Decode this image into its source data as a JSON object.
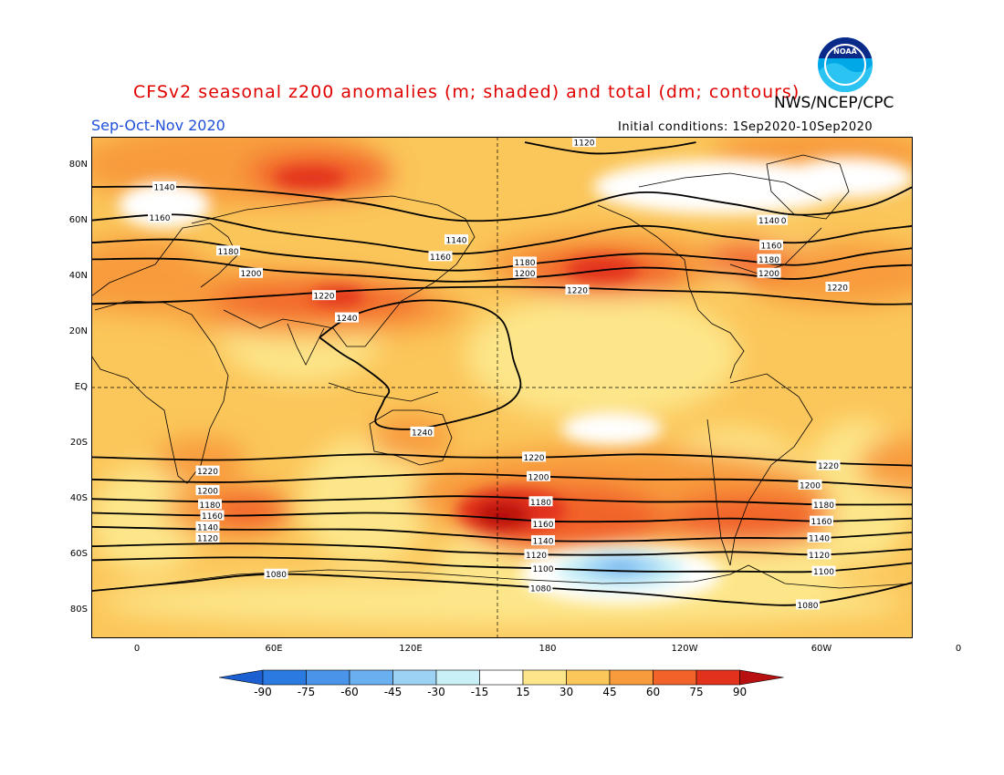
{
  "header": {
    "title": "CFSv2 seasonal z200 anomalies (m; shaded) and total (dm; contours)",
    "agency": "NWS/NCEP/CPC",
    "season": "Sep-Oct-Nov 2020",
    "initial_conditions": "Initial conditions: 1Sep2020-10Sep2020",
    "logo_text": "NOAA"
  },
  "axes": {
    "lat_labels": [
      "80N",
      "60N",
      "40N",
      "20N",
      "EQ",
      "20S",
      "40S",
      "60S",
      "80S"
    ],
    "lat_values": [
      80,
      60,
      40,
      20,
      0,
      -20,
      -40,
      -60,
      -80
    ],
    "lon_labels": [
      "0",
      "60E",
      "120E",
      "180",
      "120W",
      "60W",
      "0"
    ],
    "lon_values": [
      0,
      60,
      120,
      180,
      240,
      300,
      360
    ]
  },
  "colorbar": {
    "labels": [
      "-90",
      "-75",
      "-60",
      "-45",
      "-30",
      "-15",
      "15",
      "30",
      "45",
      "60",
      "75",
      "90"
    ],
    "colors": [
      "#1c5fd0",
      "#2a7ae2",
      "#4a95ea",
      "#6ab0f0",
      "#9cd3f4",
      "#c8f0f6",
      "#ffffff",
      "#fde68a",
      "#fbc65a",
      "#f89b3c",
      "#f2632a",
      "#e2321c",
      "#b81010"
    ]
  },
  "contour_labels": [
    {
      "text": "1120",
      "lon": 196,
      "lat": 88
    },
    {
      "text": "1140",
      "lon": 12,
      "lat": 72
    },
    {
      "text": "1160",
      "lon": 10,
      "lat": 61
    },
    {
      "text": "1180",
      "lon": 40,
      "lat": 49
    },
    {
      "text": "1200",
      "lon": 50,
      "lat": 41
    },
    {
      "text": "1220",
      "lon": 82,
      "lat": 33
    },
    {
      "text": "1240",
      "lon": 92,
      "lat": 25
    },
    {
      "text": "1140",
      "lon": 140,
      "lat": 53
    },
    {
      "text": "1160",
      "lon": 133,
      "lat": 47
    },
    {
      "text": "1180",
      "lon": 170,
      "lat": 45
    },
    {
      "text": "1200",
      "lon": 170,
      "lat": 41
    },
    {
      "text": "1220",
      "lon": 193,
      "lat": 35
    },
    {
      "text": "1140",
      "lon": 280,
      "lat": 60
    },
    {
      "text": "1160",
      "lon": 278,
      "lat": 51
    },
    {
      "text": "1180",
      "lon": 277,
      "lat": 46
    },
    {
      "text": "1200",
      "lon": 277,
      "lat": 41
    },
    {
      "text": "1220",
      "lon": 307,
      "lat": 36
    },
    {
      "text": "1240",
      "lon": 125,
      "lat": -16
    },
    {
      "text": "1220",
      "lon": 174,
      "lat": -25
    },
    {
      "text": "1200",
      "lon": 176,
      "lat": -32
    },
    {
      "text": "1180",
      "lon": 177,
      "lat": -41
    },
    {
      "text": "1160",
      "lon": 178,
      "lat": -49
    },
    {
      "text": "1140",
      "lon": 178,
      "lat": -55
    },
    {
      "text": "1120",
      "lon": 175,
      "lat": -60
    },
    {
      "text": "1100",
      "lon": 178,
      "lat": -65
    },
    {
      "text": "1080",
      "lon": 177,
      "lat": -72
    },
    {
      "text": "1220",
      "lon": 31,
      "lat": -30
    },
    {
      "text": "1200",
      "lon": 31,
      "lat": -37
    },
    {
      "text": "1180",
      "lon": 32,
      "lat": -42
    },
    {
      "text": "1160",
      "lon": 33,
      "lat": -46
    },
    {
      "text": "1140",
      "lon": 31,
      "lat": -50
    },
    {
      "text": "1120",
      "lon": 31,
      "lat": -54
    },
    {
      "text": "1080",
      "lon": 61,
      "lat": -67
    },
    {
      "text": "1220",
      "lon": 303,
      "lat": -28
    },
    {
      "text": "1200",
      "lon": 295,
      "lat": -35
    },
    {
      "text": "1180",
      "lon": 301,
      "lat": -42
    },
    {
      "text": "1160",
      "lon": 300,
      "lat": -48
    },
    {
      "text": "1140",
      "lon": 299,
      "lat": -54
    },
    {
      "text": "1120",
      "lon": 299,
      "lat": -60
    },
    {
      "text": "1100",
      "lon": 301,
      "lat": -66
    },
    {
      "text": "1080",
      "lon": 294,
      "lat": -78
    },
    {
      "text": "1140",
      "lon": 277,
      "lat": 60
    }
  ]
}
